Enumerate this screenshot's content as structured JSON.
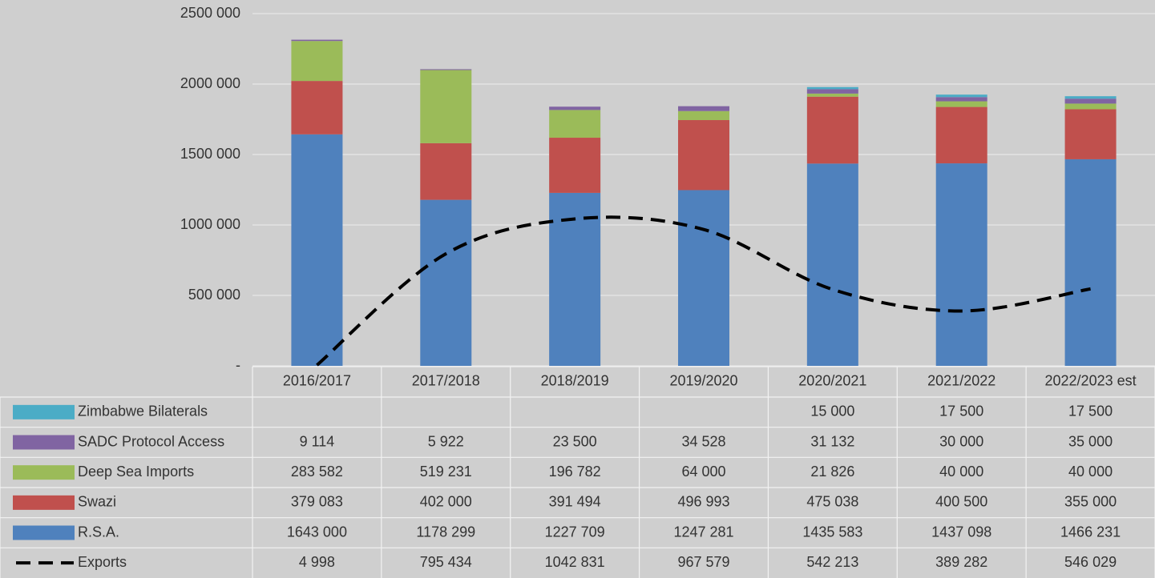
{
  "chart_data": {
    "type": "stacked_bar_line",
    "categories": [
      "2016/2017",
      "2017/2018",
      "2018/2019",
      "2019/2020",
      "2020/2021",
      "2021/2022",
      "2022/2023 est"
    ],
    "series": [
      {
        "name": "Zimbabwe Bilaterals",
        "color": "#4bacc6",
        "kind": "bar",
        "values": [
          null,
          null,
          null,
          null,
          15000,
          17500,
          17500
        ],
        "value_labels": [
          null,
          null,
          null,
          null,
          "15 000",
          "17 500",
          "17 500"
        ]
      },
      {
        "name": "SADC Protocol Access",
        "color": "#8064a2",
        "kind": "bar",
        "values": [
          9114,
          5922,
          23500,
          34528,
          31132,
          30000,
          35000
        ],
        "value_labels": [
          "9 114",
          "5 922",
          "23 500",
          "34 528",
          "31 132",
          "30 000",
          "35 000"
        ]
      },
      {
        "name": "Deep Sea Imports",
        "color": "#9bbb59",
        "kind": "bar",
        "values": [
          283582,
          519231,
          196782,
          64000,
          21826,
          40000,
          40000
        ],
        "value_labels": [
          "283 582",
          "519 231",
          "196 782",
          "64 000",
          "21 826",
          "40 000",
          "40 000"
        ]
      },
      {
        "name": "Swazi",
        "color": "#c0504d",
        "kind": "bar",
        "values": [
          379083,
          402000,
          391494,
          496993,
          475038,
          400500,
          355000
        ],
        "value_labels": [
          "379 083",
          "402 000",
          "391 494",
          "496 993",
          "475 038",
          "400 500",
          "355 000"
        ]
      },
      {
        "name": "R.S.A.",
        "color": "#4f81bd",
        "kind": "bar",
        "values": [
          1643000,
          1178299,
          1227709,
          1247281,
          1435583,
          1437098,
          1466231
        ],
        "value_labels": [
          "1643 000",
          "1178 299",
          "1227 709",
          "1247 281",
          "1435 583",
          "1437 098",
          "1466 231"
        ]
      },
      {
        "name": "Exports",
        "color": "#000000",
        "kind": "line",
        "dashed": true,
        "values": [
          4998,
          795434,
          1042831,
          967579,
          542213,
          389282,
          546029
        ],
        "value_labels": [
          "4 998",
          "795 434",
          "1042 831",
          "967 579",
          "542 213",
          "389 282",
          "546 029"
        ]
      }
    ],
    "ylim": [
      0,
      2500000
    ],
    "yticks": [
      {
        "value": 0,
        "label": "-"
      },
      {
        "value": 500000,
        "label": "500 000"
      },
      {
        "value": 1000000,
        "label": "1000 000"
      },
      {
        "value": 1500000,
        "label": "1500 000"
      },
      {
        "value": 2000000,
        "label": "2000 000"
      },
      {
        "value": 2500000,
        "label": "2500 000"
      }
    ],
    "grid": true
  }
}
